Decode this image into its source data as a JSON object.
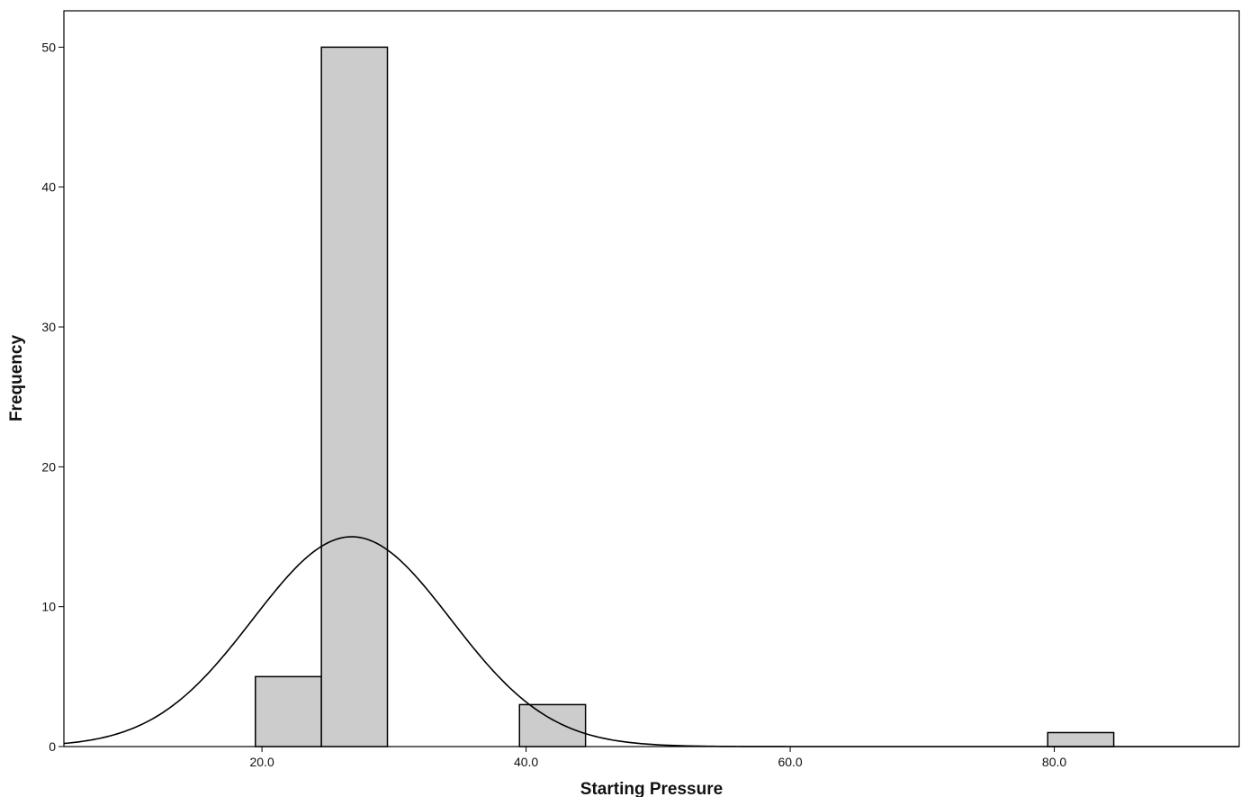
{
  "chart_data": {
    "type": "bar",
    "subtype": "histogram",
    "title": "",
    "xlabel": "Starting Pressure",
    "ylabel": "Frequency",
    "xlim": [
      5,
      94
    ],
    "ylim": [
      0,
      52.6
    ],
    "x_ticks": [
      20,
      40,
      60,
      80
    ],
    "x_tick_labels": [
      "20.0",
      "40.0",
      "60.0",
      "80.0"
    ],
    "y_ticks": [
      0,
      10,
      20,
      30,
      40,
      50
    ],
    "y_tick_labels": [
      "0",
      "10",
      "20",
      "30",
      "40",
      "50"
    ],
    "bins": [
      {
        "start": 19.5,
        "end": 24.5,
        "count": 5
      },
      {
        "start": 24.5,
        "end": 29.5,
        "count": 50
      },
      {
        "start": 39.5,
        "end": 44.5,
        "count": 3
      },
      {
        "start": 79.5,
        "end": 84.5,
        "count": 1
      }
    ],
    "normal_curve": {
      "mean": 26.8,
      "peak": 15.0,
      "sd": 7.5
    },
    "grid": false,
    "bar_color": "#cccccc",
    "bar_edge_color": "#000000"
  }
}
